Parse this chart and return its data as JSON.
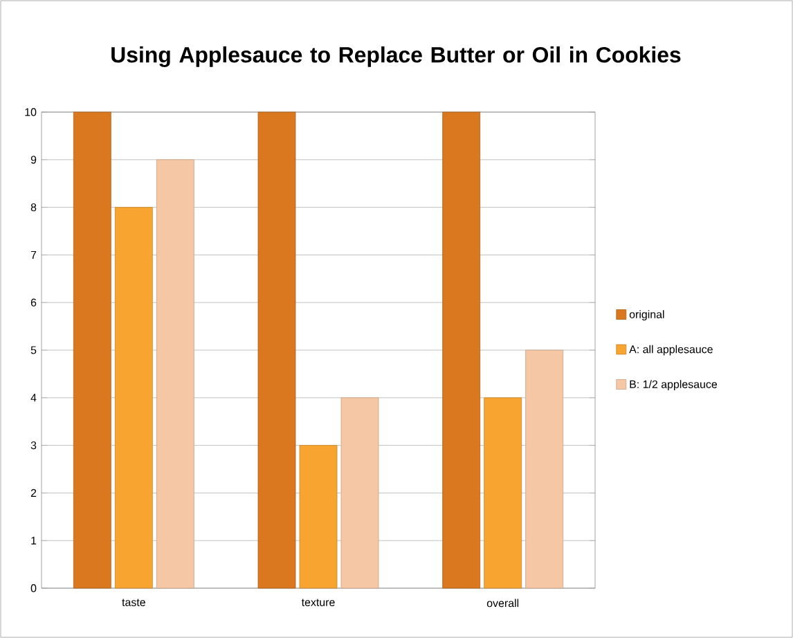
{
  "chart_data": {
    "type": "bar",
    "title": "Using Applesauce to Replace Butter or Oil in Cookies",
    "categories": [
      "taste",
      "texture",
      "overall"
    ],
    "series": [
      {
        "name": "original",
        "color": "#d9781e",
        "values": [
          10,
          10,
          10
        ]
      },
      {
        "name": "A: all applesauce",
        "color": "#f7a530",
        "values": [
          8,
          3,
          4
        ]
      },
      {
        "name": "B: 1/2 applesauce",
        "color": "#f6c7a4",
        "values": [
          9,
          4,
          5
        ]
      }
    ],
    "ylim": [
      0,
      10
    ],
    "yticks": [
      0,
      1,
      2,
      3,
      4,
      5,
      6,
      7,
      8,
      9,
      10
    ],
    "grid": "y",
    "legend": "right"
  }
}
